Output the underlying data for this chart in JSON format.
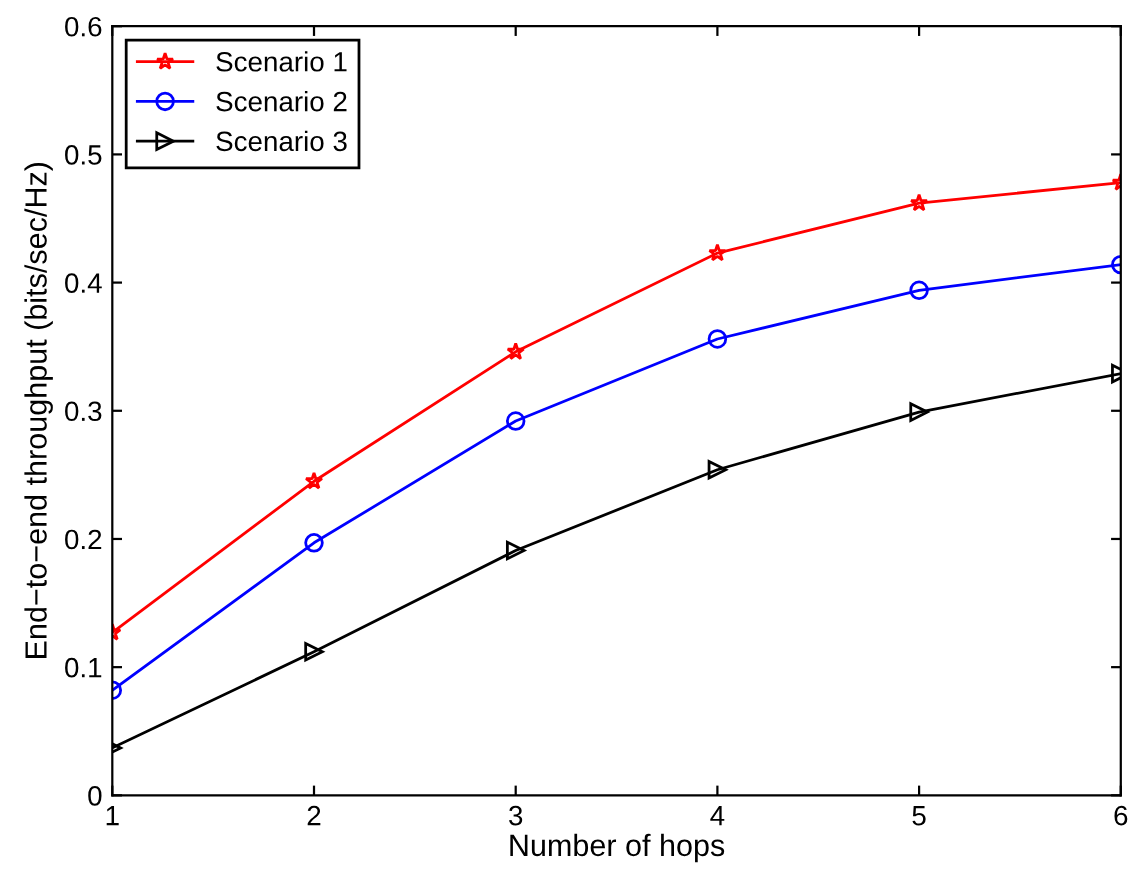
{
  "chart_data": {
    "type": "line",
    "xlabel": "Number of hops",
    "ylabel": "End−to−end throughput (bits/sec/Hz)",
    "x": [
      1,
      2,
      3,
      4,
      5,
      6
    ],
    "series": [
      {
        "name": "Scenario 1",
        "color": "#ff0000",
        "marker": "star",
        "values": [
          0.127,
          0.245,
          0.346,
          0.423,
          0.462,
          0.478
        ]
      },
      {
        "name": "Scenario 2",
        "color": "#0000ff",
        "marker": "circle",
        "values": [
          0.082,
          0.197,
          0.292,
          0.356,
          0.394,
          0.414
        ]
      },
      {
        "name": "Scenario 3",
        "color": "#000000",
        "marker": "triangle",
        "values": [
          0.037,
          0.112,
          0.191,
          0.254,
          0.299,
          0.329
        ]
      }
    ],
    "xlim": [
      1,
      6
    ],
    "ylim": [
      0,
      0.6
    ],
    "xticks": [
      1,
      2,
      3,
      4,
      5,
      6
    ],
    "yticks": [
      0,
      0.1,
      0.2,
      0.3,
      0.4,
      0.5,
      0.6
    ],
    "grid": false,
    "legend": "top left",
    "line_style": "solid"
  }
}
